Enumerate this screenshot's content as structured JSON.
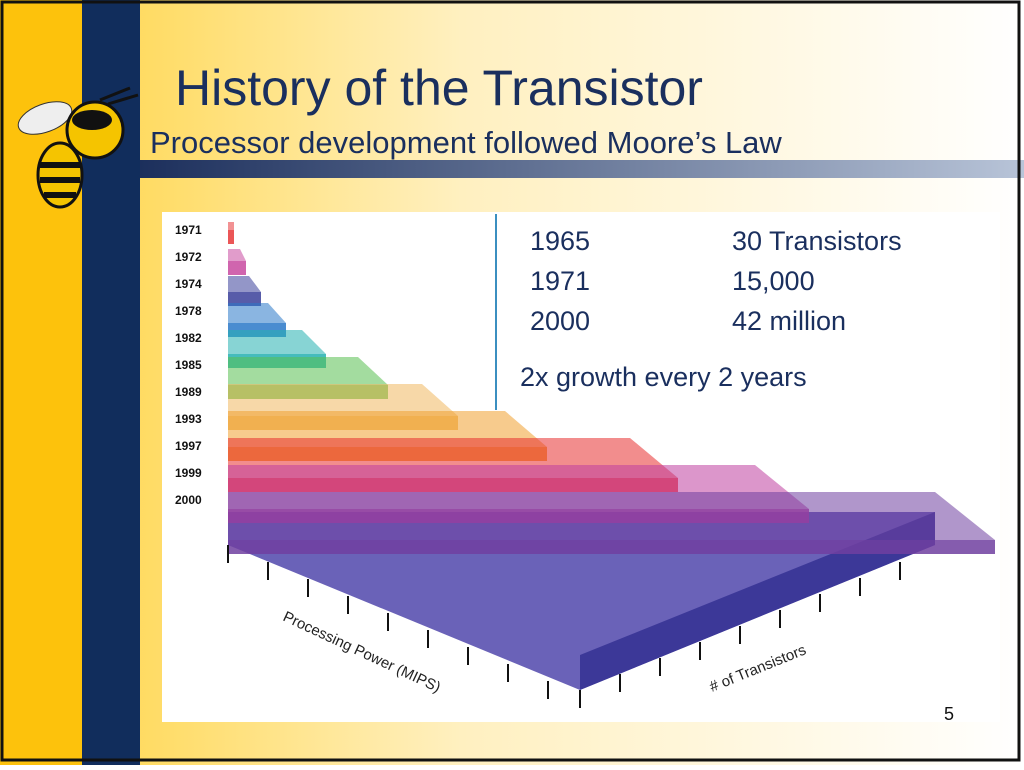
{
  "header": {
    "title": "History of the Transistor",
    "subtitle": "Processor development followed Moore’s Law"
  },
  "facts": {
    "rows": [
      [
        "1965",
        "30 Transistors"
      ],
      [
        "1971",
        "15,000"
      ],
      [
        "2000",
        "42 million"
      ]
    ],
    "note": "2x growth every 2 years"
  },
  "chart": {
    "years": [
      "1971",
      "1972",
      "1974",
      "1978",
      "1982",
      "1985",
      "1989",
      "1993",
      "1997",
      "1999",
      "2000"
    ],
    "x_axis_label": "Processing Power (MIPS)",
    "depth_axis_label": "# of Transistors"
  },
  "page_number": "5"
}
